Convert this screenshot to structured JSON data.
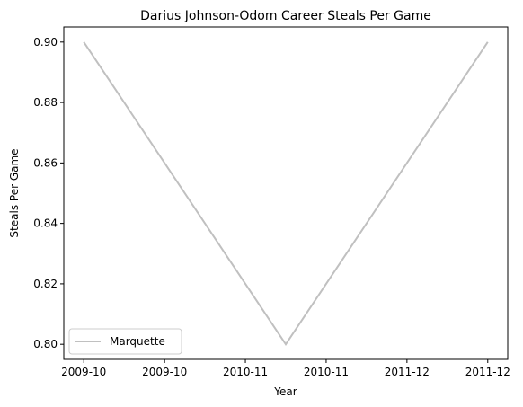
{
  "chart_data": {
    "type": "line",
    "title": "Darius Johnson-Odom Career Steals Per Game",
    "xlabel": "Year",
    "ylabel": "Steals Per Game",
    "x": [
      "2009-10",
      "2010-11",
      "2011-12"
    ],
    "x_tick_labels": [
      "2009-10",
      "2009-10",
      "2010-11",
      "2010-11",
      "2011-12",
      "2011-12"
    ],
    "y_ticks": [
      0.8,
      0.82,
      0.84,
      0.86,
      0.88,
      0.9
    ],
    "y_tick_labels": [
      "0.80",
      "0.82",
      "0.84",
      "0.86",
      "0.88",
      "0.90"
    ],
    "ylim": [
      0.795,
      0.905
    ],
    "series": [
      {
        "name": "Marquette",
        "values": [
          0.9,
          0.8,
          0.9
        ],
        "color": "#c0c0c0"
      }
    ],
    "legend": "lower-left",
    "grid": false
  }
}
